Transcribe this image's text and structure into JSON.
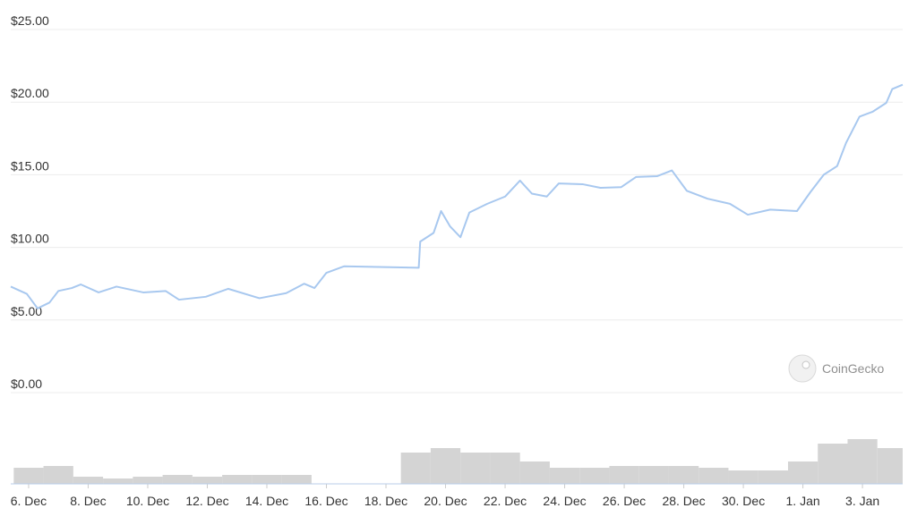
{
  "chart_data": {
    "type": "line",
    "color": "#a8c8ef",
    "x": [
      -0.6,
      -0.06,
      0.3,
      0.7,
      1.0,
      1.45,
      1.75,
      2.35,
      2.95,
      3.85,
      4.6,
      5.05,
      5.95,
      6.7,
      7.75,
      8.65,
      9.25,
      9.6,
      10.0,
      10.6,
      13.1,
      13.15,
      13.6,
      13.85,
      14.15,
      14.5,
      14.8,
      15.4,
      16.0,
      16.5,
      16.9,
      17.4,
      17.8,
      18.6,
      19.2,
      19.9,
      20.4,
      21.1,
      21.6,
      22.1,
      22.8,
      23.55,
      24.15,
      24.9,
      25.8,
      26.25,
      26.7,
      27.15,
      27.45,
      27.9,
      28.35,
      28.8,
      29.0,
      29.35
    ],
    "values": [
      7.3,
      6.8,
      5.8,
      6.2,
      7.0,
      7.2,
      7.45,
      6.9,
      7.3,
      6.9,
      7.0,
      6.4,
      6.6,
      7.15,
      6.5,
      6.85,
      7.5,
      7.2,
      8.25,
      8.7,
      8.6,
      10.4,
      11.0,
      12.5,
      11.45,
      10.7,
      12.4,
      13.0,
      13.5,
      14.6,
      13.7,
      13.5,
      14.4,
      14.35,
      14.1,
      14.15,
      14.85,
      14.9,
      15.3,
      13.9,
      13.35,
      13.0,
      12.25,
      12.6,
      12.5,
      13.8,
      15.0,
      15.6,
      17.2,
      19.0,
      19.35,
      19.95,
      20.9,
      21.2
    ],
    "xlim": [
      -0.6,
      29.35
    ],
    "xticks": [
      {
        "value": 0,
        "label": "6. Dec"
      },
      {
        "value": 2,
        "label": "8. Dec"
      },
      {
        "value": 4,
        "label": "10. Dec"
      },
      {
        "value": 6,
        "label": "12. Dec"
      },
      {
        "value": 8,
        "label": "14. Dec"
      },
      {
        "value": 10,
        "label": "16. Dec"
      },
      {
        "value": 12,
        "label": "18. Dec"
      },
      {
        "value": 14,
        "label": "20. Dec"
      },
      {
        "value": 16,
        "label": "22. Dec"
      },
      {
        "value": 18,
        "label": "24. Dec"
      },
      {
        "value": 20,
        "label": "26. Dec"
      },
      {
        "value": 22,
        "label": "28. Dec"
      },
      {
        "value": 24,
        "label": "30. Dec"
      },
      {
        "value": 26,
        "label": "1. Jan"
      },
      {
        "value": 28,
        "label": "3. Jan"
      }
    ],
    "ylim": [
      0,
      25
    ],
    "yticks": [
      {
        "value": 0,
        "label": "$0.00"
      },
      {
        "value": 5,
        "label": "$5.00"
      },
      {
        "value": 10,
        "label": "$10.00"
      },
      {
        "value": 15,
        "label": "$15.00"
      },
      {
        "value": 20,
        "label": "$20.00"
      },
      {
        "value": 25,
        "label": "$25.00"
      }
    ],
    "grid": true,
    "volume": {
      "color": "#d4d4d4",
      "x": [
        0,
        1,
        2,
        3,
        4,
        5,
        6,
        7,
        8,
        9,
        10,
        11,
        12,
        13,
        14,
        15,
        16,
        17,
        18,
        19,
        20,
        21,
        22,
        23,
        24,
        25,
        26,
        27,
        28,
        29
      ],
      "values": [
        18,
        20,
        8,
        6,
        8,
        10,
        8,
        10,
        10,
        10,
        0,
        0,
        0,
        35,
        40,
        35,
        35,
        25,
        18,
        18,
        20,
        20,
        20,
        18,
        15,
        15,
        25,
        45,
        50,
        40
      ],
      "ylim": [
        0,
        60
      ]
    },
    "watermark": "CoinGecko"
  }
}
